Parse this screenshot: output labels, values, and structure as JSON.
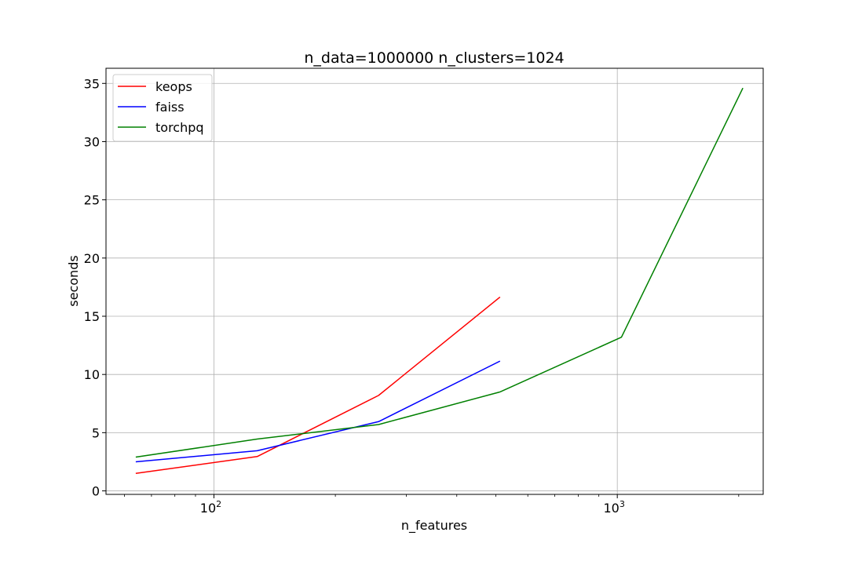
{
  "chart_data": {
    "type": "line",
    "title": "n_data=1000000 n_clusters=1024",
    "xlabel": "n_features",
    "ylabel": "seconds",
    "x_scale": "log",
    "xlim": [
      54,
      2300
    ],
    "ylim": [
      -0.3,
      36.3
    ],
    "grid": true,
    "legend_position": "top-left",
    "y_ticks": [
      0,
      5,
      10,
      15,
      20,
      25,
      30,
      35
    ],
    "x_major_ticks": [
      {
        "value": 100,
        "base": "10",
        "exp": "2"
      },
      {
        "value": 1000,
        "base": "10",
        "exp": "3"
      }
    ],
    "series": [
      {
        "name": "keops",
        "color": "#ff0000",
        "x": [
          64,
          128,
          256,
          512
        ],
        "y": [
          1.5,
          2.95,
          8.2,
          16.65
        ]
      },
      {
        "name": "faiss",
        "color": "#0000ff",
        "x": [
          64,
          128,
          256,
          512
        ],
        "y": [
          2.5,
          3.45,
          5.95,
          11.15
        ]
      },
      {
        "name": "torchpq",
        "color": "#008000",
        "x": [
          64,
          128,
          256,
          512,
          1024,
          2048
        ],
        "y": [
          2.9,
          4.45,
          5.7,
          8.5,
          13.2,
          34.6
        ]
      }
    ]
  }
}
